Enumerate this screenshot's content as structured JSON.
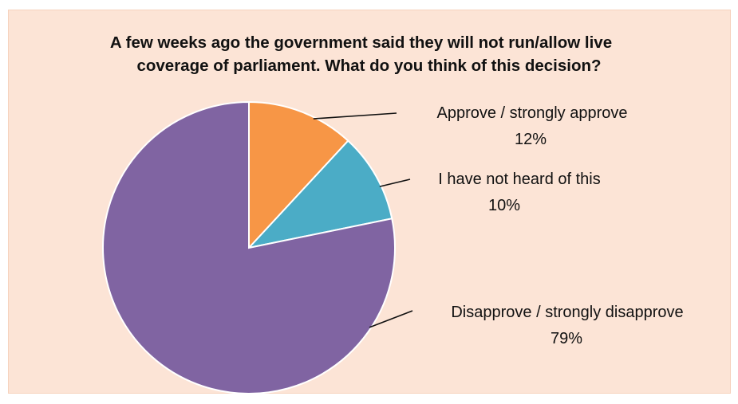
{
  "chart_data": {
    "type": "pie",
    "title_lines": [
      "A few weeks ago the government said they will not run/allow live",
      "coverage of parliament. What do you think of this decision?"
    ],
    "slices": [
      {
        "label": "Approve / strongly approve",
        "value": 12,
        "value_label": "12%",
        "color": "#f79646"
      },
      {
        "label": "I have not heard of this",
        "value": 10,
        "value_label": "10%",
        "color": "#4bacc6"
      },
      {
        "label": "Disapprove / strongly disapprove",
        "value": 79,
        "value_label": "79%",
        "color": "#8064a2"
      }
    ],
    "start_angle": "12 o'clock",
    "direction": "clockwise",
    "legend": "none",
    "background": "#fce4d6"
  }
}
